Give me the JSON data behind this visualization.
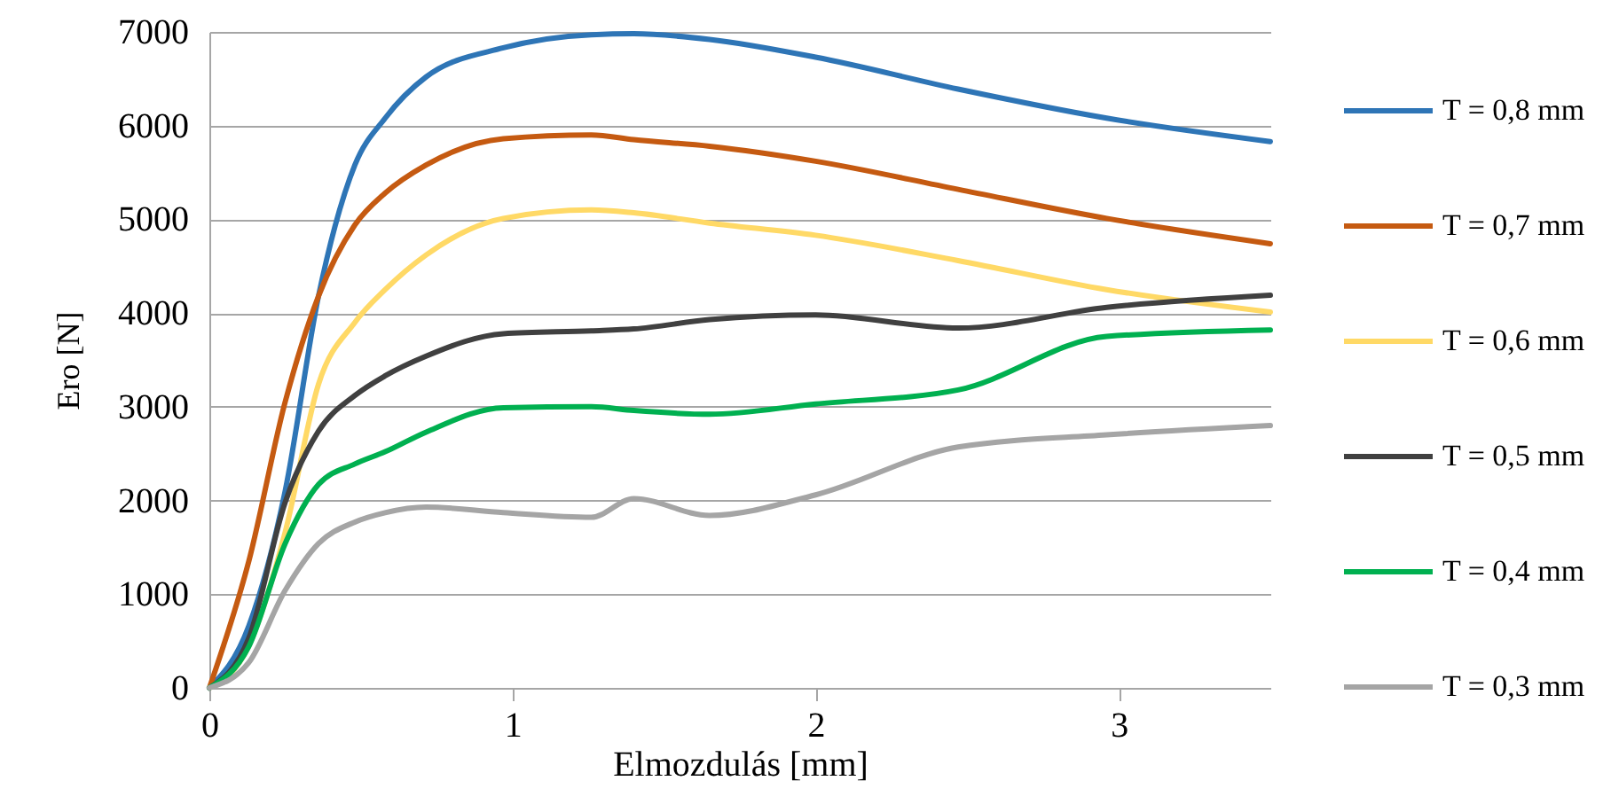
{
  "chart_data": {
    "type": "line",
    "xlabel": "Elmozdulás [mm]",
    "ylabel": "Ero [N]",
    "xlim": [
      0,
      3.5
    ],
    "xticks": [
      0,
      1,
      2,
      3
    ],
    "ylim": [
      0,
      7000
    ],
    "yticks": [
      0,
      1000,
      2000,
      3000,
      4000,
      5000,
      6000,
      7000
    ],
    "grid": "y",
    "legend": "right",
    "line_style": "solid",
    "marker": "none",
    "x": [
      0,
      0.13,
      0.25,
      0.36,
      0.48,
      0.58,
      0.715,
      0.97,
      1.26,
      1.4,
      1.65,
      2.0,
      2.47,
      2.96,
      3.5
    ],
    "series": [
      {
        "name": "T = 0,8 mm",
        "color": "#2e75b6",
        "values": [
          0,
          660,
          2100,
          4180,
          5580,
          6080,
          6520,
          6830,
          6970,
          6980,
          6920,
          6730,
          6390,
          6080,
          5830
        ]
      },
      {
        "name": "T = 0,7 mm",
        "color": "#c55a11",
        "values": [
          0,
          1350,
          3050,
          4180,
          4940,
          5280,
          5580,
          5860,
          5900,
          5850,
          5780,
          5620,
          5320,
          5010,
          4740
        ]
      },
      {
        "name": "T = 0,6 mm",
        "color": "#ffd966",
        "values": [
          0,
          450,
          1660,
          3240,
          3900,
          4250,
          4620,
          5010,
          5100,
          5070,
          4960,
          4830,
          4560,
          4250,
          4010
        ]
      },
      {
        "name": "T = 0,5 mm",
        "color": "#404040",
        "values": [
          0,
          530,
          1980,
          2740,
          3120,
          3330,
          3540,
          3780,
          3810,
          3830,
          3930,
          3980,
          3840,
          4060,
          4190
        ]
      },
      {
        "name": "T = 0,4 mm",
        "color": "#00b050",
        "values": [
          0,
          440,
          1540,
          2170,
          2390,
          2520,
          2730,
          2990,
          3000,
          2960,
          2920,
          3030,
          3180,
          3750,
          3820
        ]
      },
      {
        "name": "T = 0,3 mm",
        "color": "#a5a5a5",
        "values": [
          0,
          270,
          1040,
          1540,
          1770,
          1870,
          1930,
          1870,
          1820,
          2020,
          1840,
          2060,
          2570,
          2700,
          2800
        ]
      }
    ]
  }
}
